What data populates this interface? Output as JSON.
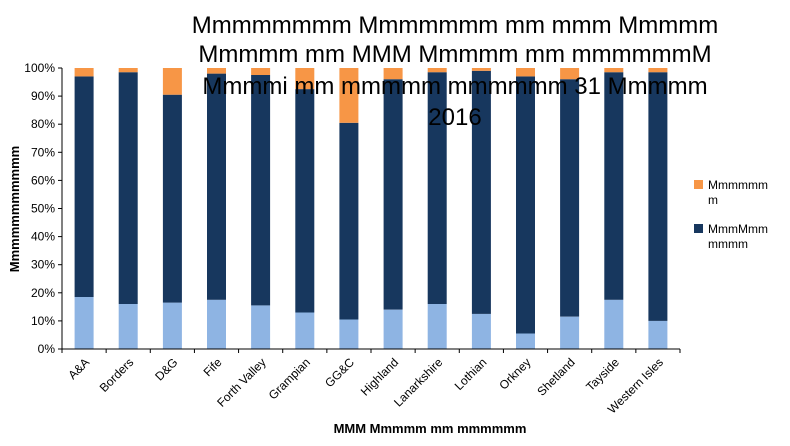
{
  "chart_data": {
    "type": "bar",
    "stacked": true,
    "title_lines": [
      "Mmmmmmmm Mmmmmmm mm mmm Mmmmm",
      "Mmmmm mm MMM Mmmmm mm mmmmmmM",
      "Mmmmi mm mmmmm mmmmmm 31 Mmmmm",
      "2016"
    ],
    "xlabel": "MMM Mmmmm mm mmmmmm",
    "ylabel": "Mmmmmmmmmmm",
    "ylim": [
      0,
      100
    ],
    "yticks": [
      "0%",
      "10%",
      "20%",
      "30%",
      "40%",
      "50%",
      "60%",
      "70%",
      "80%",
      "90%",
      "100%"
    ],
    "grid": false,
    "legend_position": "right",
    "categories": [
      "A&A",
      "Borders",
      "D&G",
      "Fife",
      "Forth Valley",
      "Grampian",
      "GG&C",
      "Highland",
      "Lanarkshire",
      "Lothian",
      "Orkney",
      "Shetland",
      "Tayside",
      "Western Isles"
    ],
    "series": [
      {
        "name": "",
        "color": "#8eb4e3",
        "values": [
          18.5,
          16,
          16.5,
          17.5,
          15.5,
          13,
          10.5,
          14,
          16,
          12.5,
          5.5,
          11.5,
          17.5,
          10
        ]
      },
      {
        "name": "MmmMmm mmmm",
        "color": "#17375e",
        "values": [
          78.5,
          82.5,
          74,
          80.5,
          82,
          79.5,
          70,
          82,
          82.5,
          86.5,
          91.5,
          84.5,
          81,
          88.5
        ]
      },
      {
        "name": "Mmmmmm m",
        "color": "#f79646",
        "values": [
          3,
          1.5,
          9.5,
          2,
          2.5,
          7.5,
          19.5,
          4,
          1.5,
          1,
          3,
          4,
          1.5,
          1.5
        ]
      }
    ]
  }
}
